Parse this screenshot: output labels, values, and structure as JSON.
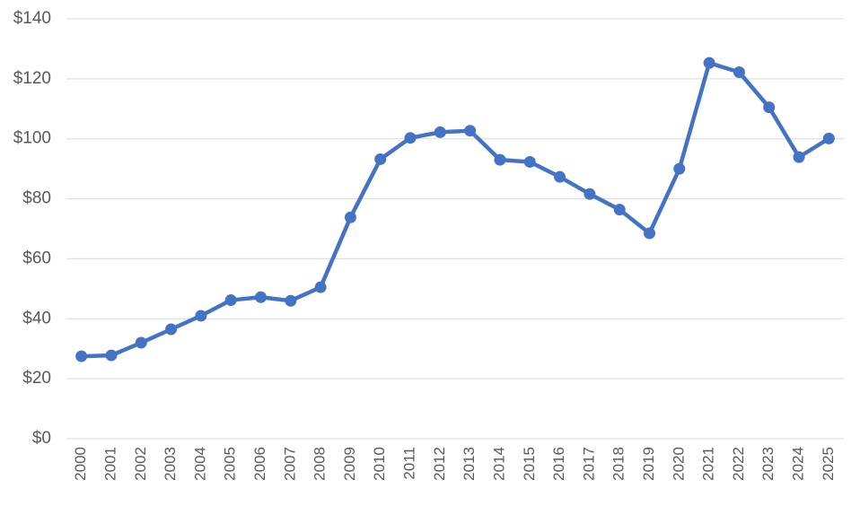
{
  "chart_data": {
    "type": "line",
    "title": "",
    "xlabel": "",
    "ylabel": "",
    "categories": [
      "2000",
      "2001",
      "2002",
      "2003",
      "2004",
      "2005",
      "2006",
      "2007",
      "2008",
      "2009",
      "2010",
      "2011",
      "2012",
      "2013",
      "2014",
      "2015",
      "2016",
      "2017",
      "2018",
      "2019",
      "2020",
      "2021",
      "2022",
      "2023",
      "2024",
      "2025"
    ],
    "series": [
      {
        "values": [
          27.5,
          27.8,
          32.0,
          36.5,
          41.0,
          46.2,
          47.2,
          46.0,
          50.5,
          73.8,
          93.2,
          100.3,
          102.2,
          102.7,
          93.0,
          92.3,
          87.3,
          81.6,
          76.4,
          68.5,
          90.0,
          125.3,
          122.2,
          110.5,
          93.9,
          100.1
        ],
        "color": "#4472c4"
      }
    ],
    "ylim": [
      0,
      140
    ],
    "yticks": [
      0,
      20,
      40,
      60,
      80,
      100,
      120,
      140
    ],
    "ytick_labels": [
      "$0",
      "$20",
      "$40",
      "$60",
      "$80",
      "$100",
      "$120",
      "$140"
    ],
    "grid": true,
    "legend": "none",
    "colors": {
      "grid": "#d9d9d9",
      "tick_text": "#595959",
      "line": "#4472c4"
    }
  }
}
